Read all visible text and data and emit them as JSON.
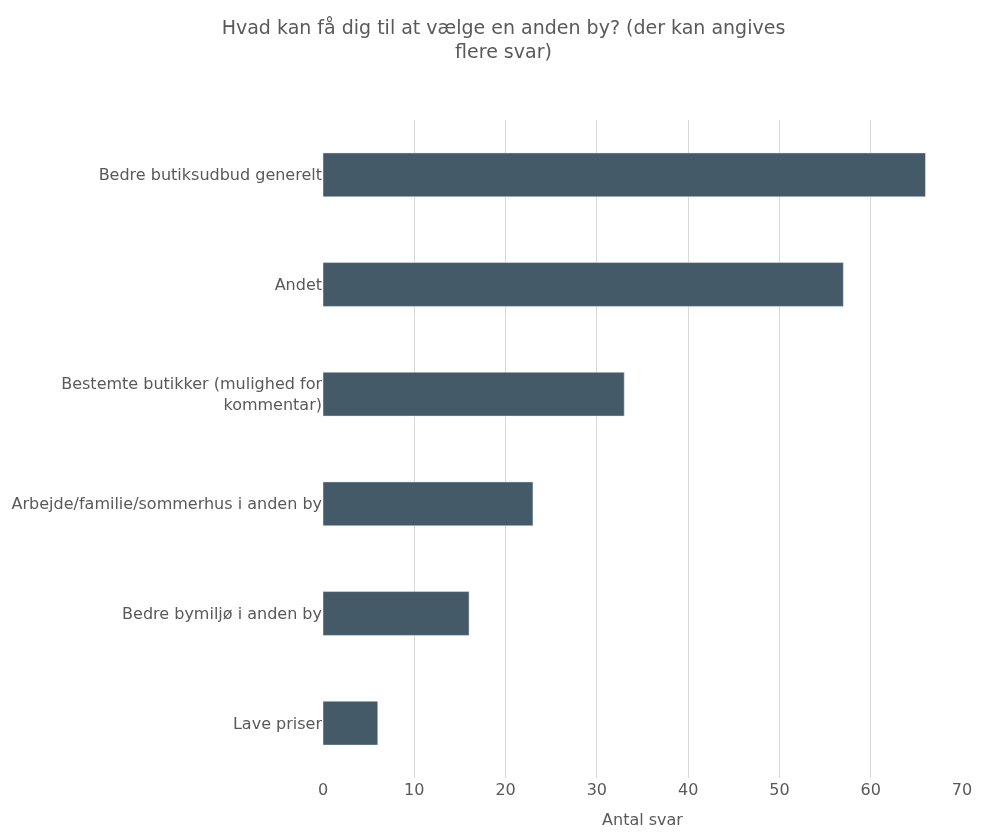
{
  "chart_data": {
    "type": "bar",
    "orientation": "horizontal",
    "title": "Hvad kan få dig til at vælge en anden by? (der kan angives flere svar)",
    "xlabel": "Antal svar",
    "categories": [
      "Bedre butiksudbud generelt",
      "Andet",
      "Bestemte butikker (mulighed for kommentar)",
      "Arbejde/familie/sommerhus i anden by",
      "Bedre bymiljø i anden by",
      "Lave priser"
    ],
    "values": [
      66,
      57,
      33,
      23,
      16,
      6
    ],
    "color": "#445a69",
    "xlim": [
      0,
      70
    ],
    "xticks": [
      0,
      10,
      20,
      30,
      40,
      50,
      60,
      70
    ],
    "grid": "x"
  }
}
